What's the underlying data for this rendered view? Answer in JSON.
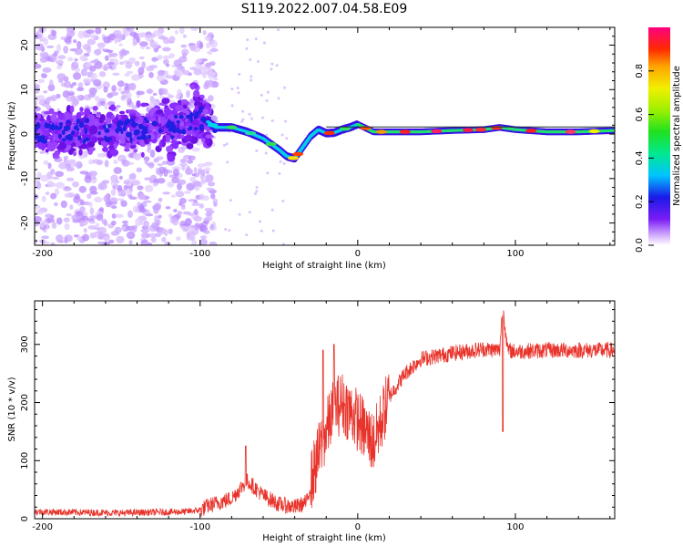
{
  "title": "S119.2022.007.04.58.E09",
  "colors": {
    "snr_line": "#e8322a",
    "axes": "#000000",
    "background": "#ffffff"
  },
  "chart_data": [
    {
      "type": "heatmap",
      "name": "spectrogram",
      "xlabel": "Height of straight line (km)",
      "ylabel": "Frequency (Hz)",
      "xlim": [
        -205,
        163
      ],
      "ylim": [
        -25,
        24
      ],
      "xticks": [
        -200,
        -100,
        0,
        100
      ],
      "yticks": [
        -20,
        -10,
        0,
        10,
        20
      ],
      "xtick_labels": [
        "-200",
        "-100",
        "0",
        "100"
      ],
      "ytick_labels": [
        "-20",
        "-10",
        "0",
        "10",
        "20"
      ],
      "ridge_x": [
        -205,
        -180,
        -150,
        -120,
        -100,
        -90,
        -80,
        -70,
        -60,
        -50,
        -45,
        -40,
        -35,
        -30,
        -25,
        -20,
        -15,
        -10,
        -5,
        0,
        10,
        20,
        40,
        60,
        80,
        90,
        100,
        120,
        140,
        163
      ],
      "ridge_y": [
        0,
        0.5,
        1,
        1.5,
        4,
        1.5,
        1.5,
        0.5,
        -1,
        -3.5,
        -5,
        -5.5,
        -3,
        -0.5,
        1,
        0.2,
        0.3,
        1,
        1.5,
        2.2,
        0.5,
        0.5,
        0.5,
        0.8,
        1,
        1.5,
        1,
        0.5,
        0.5,
        0.8
      ],
      "colorbar": {
        "label": "Normalized spectral amplitude",
        "range": [
          0,
          1
        ],
        "ticks": [
          0.0,
          0.2,
          0.4,
          0.6,
          0.8
        ],
        "tick_labels": [
          "0.0",
          "0.2",
          "0.4",
          "0.6",
          "0.8"
        ]
      }
    },
    {
      "type": "line",
      "name": "snr",
      "xlabel": "Height of straight line (km)",
      "ylabel": "SNR (10 * v/v)",
      "xlim": [
        -205,
        163
      ],
      "ylim": [
        0,
        375
      ],
      "xticks": [
        -200,
        -100,
        0,
        100
      ],
      "yticks": [
        0,
        100,
        200,
        300
      ],
      "xtick_labels": [
        "-200",
        "-100",
        "0",
        "100"
      ],
      "ytick_labels": [
        "0",
        "100",
        "200",
        "300"
      ],
      "trend_x": [
        -205,
        -150,
        -110,
        -100,
        -95,
        -80,
        -72,
        -70,
        -60,
        -50,
        -40,
        -35,
        -32,
        -30,
        -25,
        -20,
        -15,
        -10,
        -5,
        0,
        5,
        10,
        15,
        20,
        30,
        40,
        60,
        80,
        90,
        92,
        95,
        100,
        120,
        140,
        163
      ],
      "trend_y": [
        12,
        10,
        12,
        15,
        22,
        35,
        60,
        65,
        40,
        25,
        20,
        25,
        30,
        60,
        110,
        150,
        190,
        200,
        185,
        170,
        150,
        130,
        170,
        210,
        250,
        275,
        285,
        292,
        290,
        370,
        290,
        288,
        290,
        290,
        290
      ],
      "spikes": [
        {
          "x": -71,
          "y": 125
        },
        {
          "x": -22,
          "y": 290
        },
        {
          "x": -15,
          "y": 300
        },
        {
          "x": 92,
          "y": 372
        },
        {
          "x": 92,
          "y": 150
        }
      ]
    }
  ]
}
